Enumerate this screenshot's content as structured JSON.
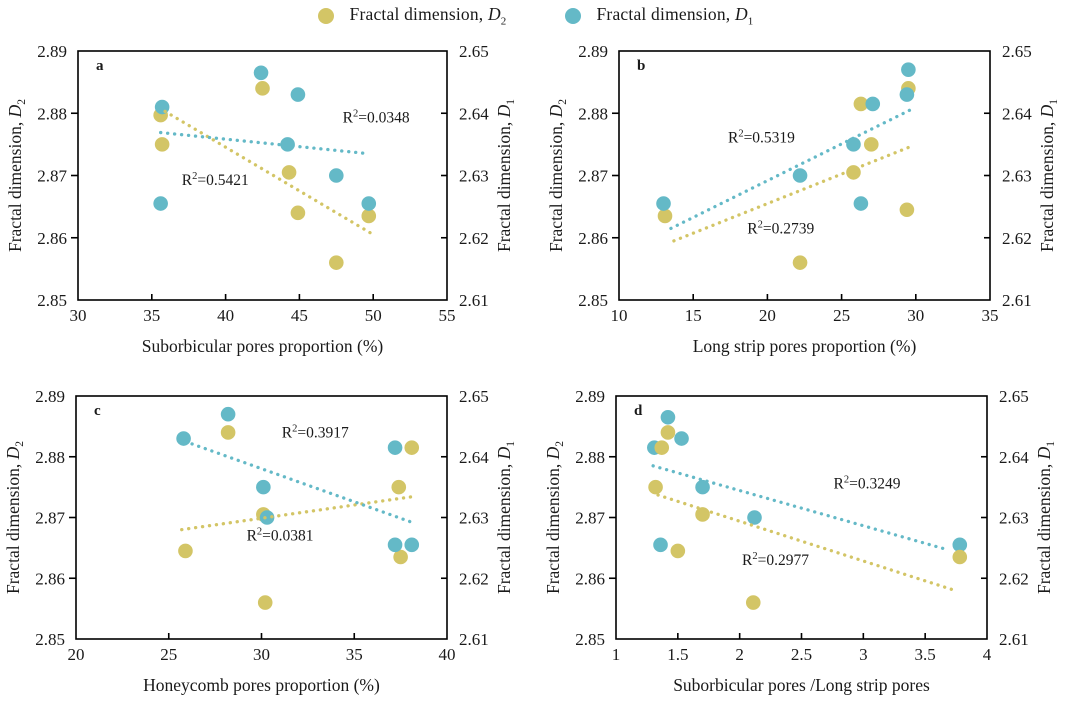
{
  "colors": {
    "d2": "#d3c566",
    "d1": "#64b9c7",
    "axis": "#000000",
    "text": "#1a1a1a"
  },
  "legend": {
    "items": [
      {
        "key": "D2",
        "text": "Fractal dimension, ",
        "symbol": "D",
        "sub": "2"
      },
      {
        "key": "D1",
        "text": "Fractal dimension, ",
        "symbol": "D",
        "sub": "1"
      }
    ]
  },
  "chart_data": [
    {
      "id": "a",
      "type": "scatter",
      "panel_label": "a",
      "xlabel": "Suborbicular pores proportion (%)",
      "xlim": [
        30,
        55
      ],
      "xticks": [
        30,
        35,
        40,
        45,
        50,
        55
      ],
      "left_axis": {
        "label_text": "Fractal dimension, ",
        "label_symbol": "D",
        "label_sub": "2",
        "lim": [
          2.85,
          2.89
        ],
        "ticks": [
          2.85,
          2.86,
          2.87,
          2.88,
          2.89
        ]
      },
      "right_axis": {
        "label_text": "Fractal dimension, ",
        "label_symbol": "D",
        "label_sub": "1",
        "lim": [
          2.61,
          2.65
        ],
        "ticks": [
          2.61,
          2.62,
          2.63,
          2.64,
          2.65
        ]
      },
      "grid": false,
      "draw_order": [
        "D2",
        "D1"
      ],
      "series": [
        {
          "key": "D2",
          "name": "Fractal dimension, D2",
          "axis": "left",
          "points": [
            [
              35.6,
              2.8797
            ],
            [
              35.7,
              2.875
            ],
            [
              42.5,
              2.884
            ],
            [
              44.3,
              2.8705
            ],
            [
              44.9,
              2.864
            ],
            [
              47.5,
              2.856
            ],
            [
              49.7,
              2.8635
            ]
          ]
        },
        {
          "key": "D1",
          "name": "Fractal dimension, D1",
          "axis": "right",
          "points": [
            [
              35.7,
              2.641
            ],
            [
              35.6,
              2.6255
            ],
            [
              42.4,
              2.6465
            ],
            [
              44.9,
              2.643
            ],
            [
              44.2,
              2.635
            ],
            [
              47.5,
              2.63
            ],
            [
              49.7,
              2.6255
            ]
          ]
        }
      ],
      "trendlines": [
        {
          "series": "D2",
          "start": [
            35.9,
            2.8803
          ],
          "end": [
            49.8,
            2.8608
          ],
          "r2": "0.5421",
          "label_pos": [
            39.3,
            2.8685
          ]
        },
        {
          "series": "D1",
          "start": [
            35.6,
            2.6369
          ],
          "end": [
            49.7,
            2.6335
          ],
          "r2": "0.0348",
          "label_pos": [
            50.2,
            2.6385
          ]
        }
      ]
    },
    {
      "id": "b",
      "type": "scatter",
      "panel_label": "b",
      "xlabel": "Long strip pores proportion (%)",
      "xlim": [
        10,
        35
      ],
      "xticks": [
        10,
        15,
        20,
        25,
        30,
        35
      ],
      "left_axis": {
        "label_text": "Fractal dimension, ",
        "label_symbol": "D",
        "label_sub": "2",
        "lim": [
          2.85,
          2.89
        ],
        "ticks": [
          2.85,
          2.86,
          2.87,
          2.88,
          2.89
        ]
      },
      "right_axis": {
        "label_text": "Fractal dimension, ",
        "label_symbol": "D",
        "label_sub": "1",
        "lim": [
          2.61,
          2.65
        ],
        "ticks": [
          2.61,
          2.62,
          2.63,
          2.64,
          2.65
        ]
      },
      "grid": false,
      "draw_order": [
        "D2",
        "D1"
      ],
      "series": [
        {
          "key": "D2",
          "name": "Fractal dimension, D2",
          "axis": "left",
          "points": [
            [
              13.1,
              2.8635
            ],
            [
              22.2,
              2.856
            ],
            [
              25.8,
              2.8705
            ],
            [
              26.3,
              2.8815
            ],
            [
              27.0,
              2.875
            ],
            [
              29.4,
              2.8645
            ],
            [
              29.5,
              2.884
            ]
          ]
        },
        {
          "key": "D1",
          "name": "Fractal dimension, D1",
          "axis": "right",
          "points": [
            [
              13.0,
              2.6255
            ],
            [
              22.2,
              2.63
            ],
            [
              25.8,
              2.635
            ],
            [
              26.3,
              2.6255
            ],
            [
              27.1,
              2.6415
            ],
            [
              29.4,
              2.643
            ],
            [
              29.5,
              2.647
            ]
          ]
        }
      ],
      "trendlines": [
        {
          "series": "D2",
          "start": [
            13.7,
            2.8595
          ],
          "end": [
            29.5,
            2.8745
          ],
          "r2": "0.2739",
          "label_pos": [
            20.9,
            2.8607
          ]
        },
        {
          "series": "D1",
          "start": [
            13.5,
            2.6215
          ],
          "end": [
            29.6,
            2.6405
          ],
          "r2": "0.5319",
          "label_pos": [
            19.6,
            2.6353
          ]
        }
      ]
    },
    {
      "id": "c",
      "type": "scatter",
      "panel_label": "c",
      "xlabel": "Honeycomb pores proportion (%)",
      "xlim": [
        20,
        40
      ],
      "xticks": [
        20,
        25,
        30,
        35,
        40
      ],
      "left_axis": {
        "label_text": "Fractal dimension, ",
        "label_symbol": "D",
        "label_sub": "2",
        "lim": [
          2.85,
          2.89
        ],
        "ticks": [
          2.85,
          2.86,
          2.87,
          2.88,
          2.89
        ]
      },
      "right_axis": {
        "label_text": "Fractal dimension, ",
        "label_symbol": "D",
        "label_sub": "1",
        "lim": [
          2.61,
          2.65
        ],
        "ticks": [
          2.61,
          2.62,
          2.63,
          2.64,
          2.65
        ]
      },
      "grid": false,
      "draw_order": [
        "D2",
        "D1"
      ],
      "series": [
        {
          "key": "D2",
          "name": "Fractal dimension, D2",
          "axis": "left",
          "points": [
            [
              25.9,
              2.8645
            ],
            [
              28.2,
              2.884
            ],
            [
              30.1,
              2.8705
            ],
            [
              30.2,
              2.856
            ],
            [
              37.4,
              2.875
            ],
            [
              37.5,
              2.8635
            ],
            [
              38.1,
              2.8815
            ]
          ]
        },
        {
          "key": "D1",
          "name": "Fractal dimension, D1",
          "axis": "right",
          "points": [
            [
              25.8,
              2.643
            ],
            [
              28.2,
              2.647
            ],
            [
              30.1,
              2.635
            ],
            [
              30.3,
              2.63
            ],
            [
              37.2,
              2.6415
            ],
            [
              37.2,
              2.6255
            ],
            [
              38.1,
              2.6255
            ]
          ]
        }
      ],
      "trendlines": [
        {
          "series": "D2",
          "start": [
            25.7,
            2.868
          ],
          "end": [
            38.3,
            2.8735
          ],
          "r2": "0.0381",
          "label_pos": [
            31.0,
            2.8662
          ]
        },
        {
          "series": "D1",
          "start": [
            25.9,
            2.6425
          ],
          "end": [
            38.3,
            2.629
          ],
          "r2": "0.3917",
          "label_pos": [
            32.9,
            2.6432
          ]
        }
      ]
    },
    {
      "id": "d",
      "type": "scatter",
      "panel_label": "d",
      "xlabel": "Suborbicular pores /Long strip pores",
      "xlim": [
        1,
        4
      ],
      "xticks": [
        1,
        1.5,
        2,
        2.5,
        3,
        3.5,
        4
      ],
      "left_axis": {
        "label_text": "Fractal dimension, ",
        "label_symbol": "D",
        "label_sub": "2",
        "lim": [
          2.85,
          2.89
        ],
        "ticks": [
          2.85,
          2.86,
          2.87,
          2.88,
          2.89
        ]
      },
      "right_axis": {
        "label_text": "Fractal dimension, ",
        "label_symbol": "D",
        "label_sub": "1",
        "lim": [
          2.61,
          2.65
        ],
        "ticks": [
          2.61,
          2.62,
          2.63,
          2.64,
          2.65
        ]
      },
      "grid": false,
      "draw_order": [
        "D1",
        "D2"
      ],
      "series": [
        {
          "key": "D2",
          "name": "Fractal dimension, D2",
          "axis": "left",
          "points": [
            [
              1.32,
              2.875
            ],
            [
              1.37,
              2.8815
            ],
            [
              1.42,
              2.884
            ],
            [
              1.5,
              2.8645
            ],
            [
              1.7,
              2.8705
            ],
            [
              2.11,
              2.856
            ],
            [
              3.78,
              2.8635
            ]
          ]
        },
        {
          "key": "D1",
          "name": "Fractal dimension, D1",
          "axis": "right",
          "points": [
            [
              1.31,
              2.6415
            ],
            [
              1.36,
              2.6255
            ],
            [
              1.42,
              2.6465
            ],
            [
              1.53,
              2.643
            ],
            [
              1.7,
              2.635
            ],
            [
              2.12,
              2.63
            ],
            [
              3.78,
              2.6255
            ]
          ]
        }
      ],
      "trendlines": [
        {
          "series": "D2",
          "start": [
            1.34,
            2.8737
          ],
          "end": [
            3.74,
            2.858
          ],
          "r2": "0.2977",
          "label_pos": [
            2.29,
            2.8622
          ]
        },
        {
          "series": "D1",
          "start": [
            1.3,
            2.6385
          ],
          "end": [
            3.68,
            2.6247
          ],
          "r2": "0.3249",
          "label_pos": [
            3.03,
            2.6348
          ]
        }
      ]
    }
  ]
}
